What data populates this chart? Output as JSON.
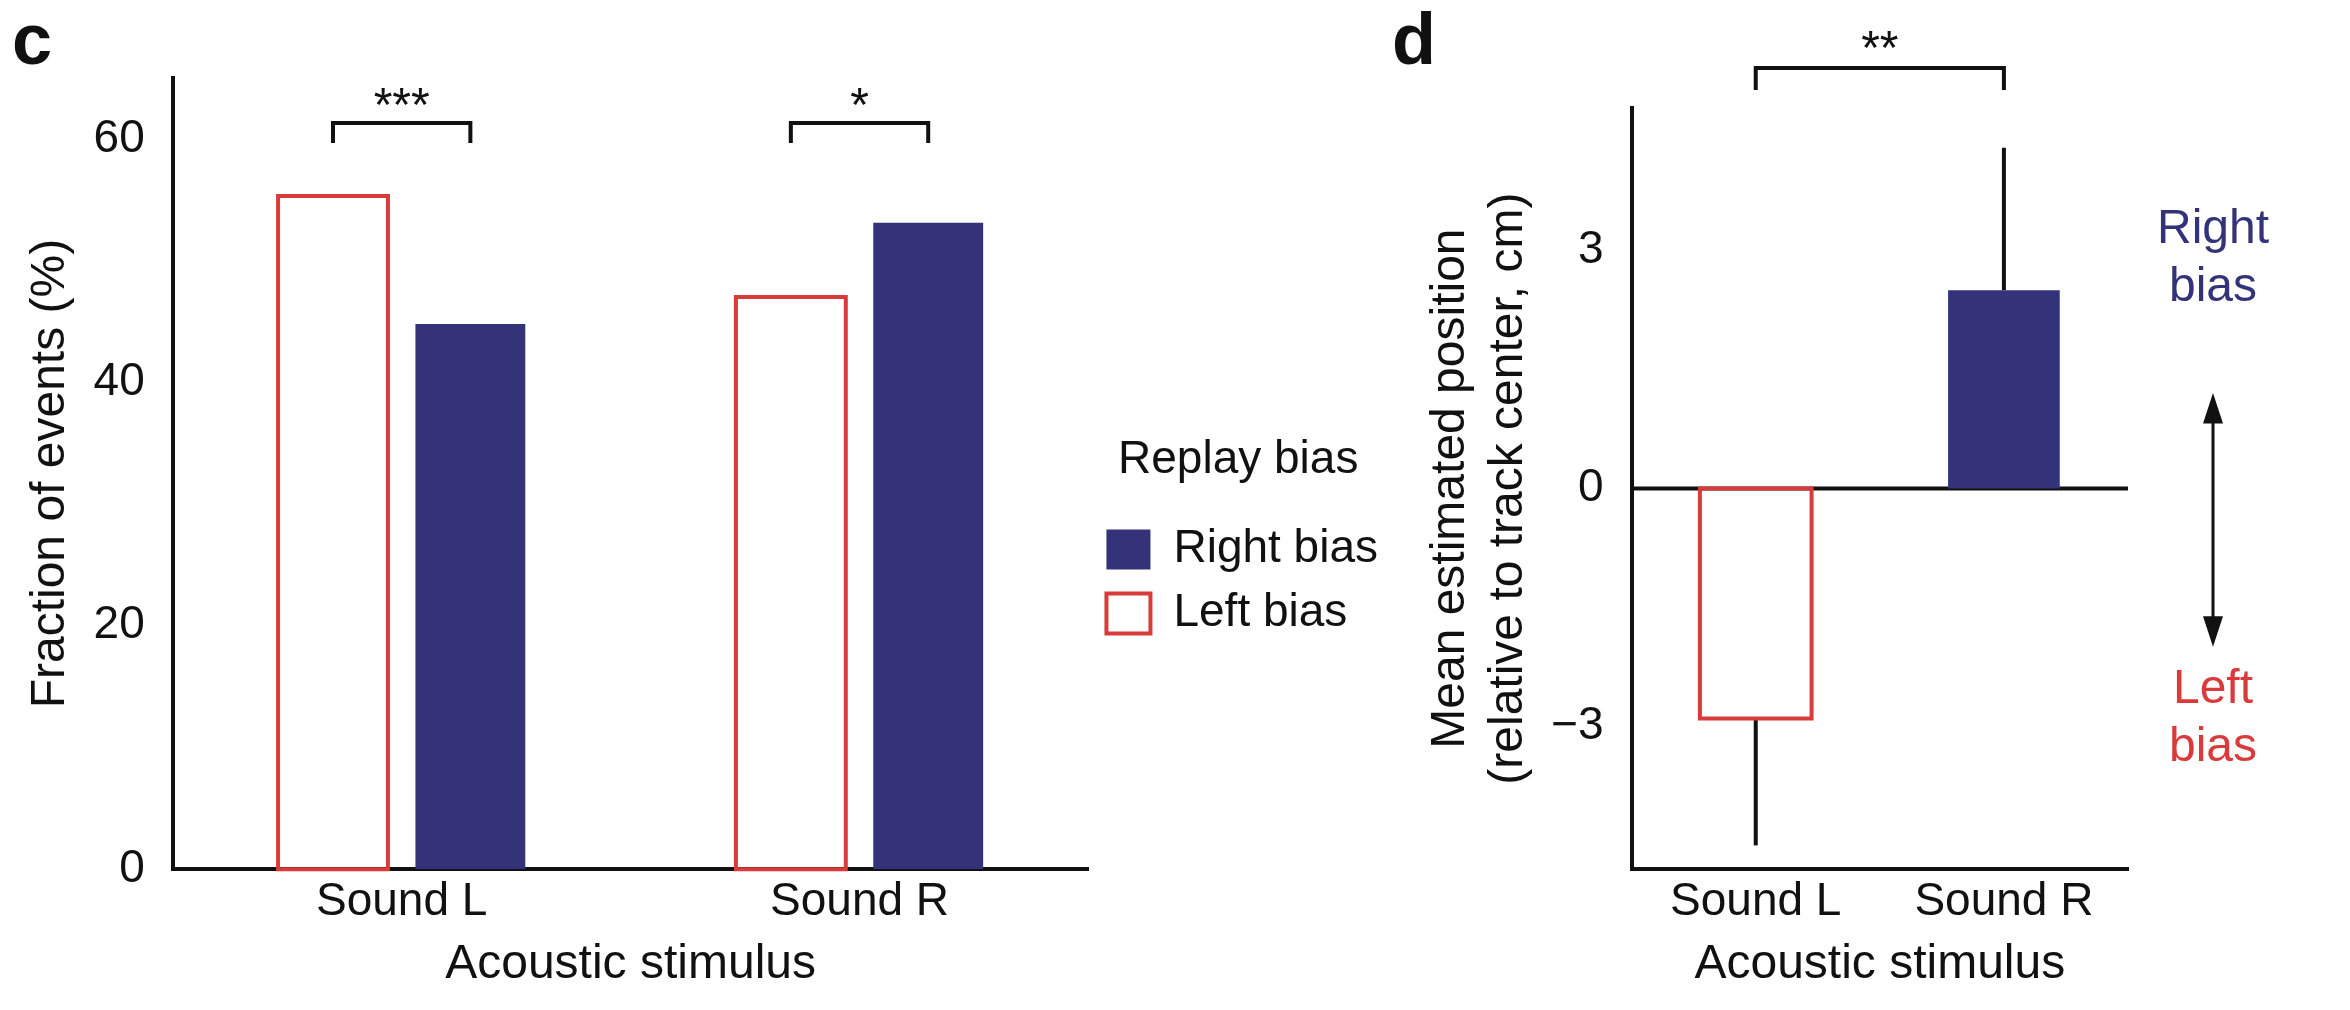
{
  "chart_data": [
    {
      "type": "bar",
      "title": "c",
      "categories": [
        "Sound L",
        "Sound R"
      ],
      "xlabel": "Acoustic stimulus",
      "ylabel": "Fraction of events (%)",
      "legend_title": "Replay bias",
      "series": [
        {
          "name": "Left bias",
          "color": "#d93a3a",
          "values": [
            55.3,
            47.0
          ]
        },
        {
          "name": "Right bias",
          "color": "#343379",
          "values": [
            44.8,
            53.1
          ]
        }
      ],
      "ylim": [
        0,
        65
      ],
      "yticks": [
        0,
        20,
        40,
        60
      ],
      "legend": "right",
      "annotations": [
        "***",
        "*"
      ]
    },
    {
      "type": "bar",
      "title": "d",
      "categories": [
        "Sound L",
        "Sound R"
      ],
      "xlabel": "Acoustic stimulus",
      "ylabel": "Mean estimated position (relative to track center, cm)",
      "values": [
        -2.9,
        2.5
      ],
      "colors": [
        "#d93a3a",
        "#343379"
      ],
      "errors": [
        [
          -4.5,
          -2.9
        ],
        [
          2.5,
          4.3
        ]
      ],
      "ylim": [
        -4.8,
        4.8
      ],
      "yticks": [
        {
          "value": -3,
          "label": "−3"
        },
        0,
        3
      ],
      "annotations": [
        "**",
        "Right bias",
        "Left bias"
      ]
    }
  ]
}
